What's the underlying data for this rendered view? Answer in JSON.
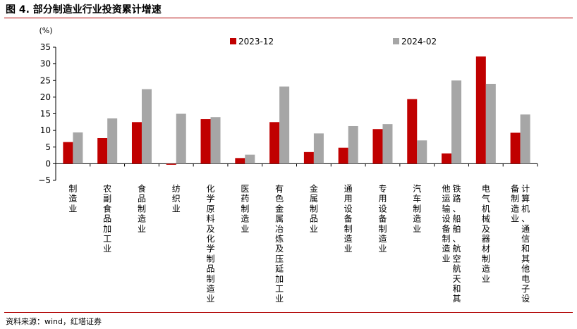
{
  "title": "图 4. 部分制造业行业投资累计增速",
  "source": "资料来源：wind，红塔证券",
  "colors": {
    "series1": "#c00000",
    "series2": "#a6a6a6",
    "rule": "#b00000"
  },
  "chart_data": {
    "type": "bar",
    "title": "",
    "xlabel": "",
    "ylabel": "",
    "unit_label": "(%)",
    "ylim": [
      -5,
      35
    ],
    "yticks": [
      -5,
      0,
      5,
      10,
      15,
      20,
      25,
      30,
      35
    ],
    "grid": false,
    "legend_position": "top-center",
    "categories": [
      "制造业",
      "农副食品加工业",
      "食品制造业",
      "纺织业",
      "化学原料及化学制品制造业",
      "医药制造业",
      "有色金属冶炼及压延加工业",
      "金属制品业",
      "通用设备制造业",
      "专用设备制造业",
      "汽车制造业",
      "铁路、船舶、航空航天和其他运输设备制造业",
      "电气机械及器材制造业",
      "计算机、通信和其他电子设备制造业"
    ],
    "category_label_columns": [
      [
        "制造业"
      ],
      [
        "农副食品加工业"
      ],
      [
        "食品制造业"
      ],
      [
        "纺织业"
      ],
      [
        "化学原料及化学制品制造业"
      ],
      [
        "医药制造业"
      ],
      [
        "有色金属冶炼及压延加工业"
      ],
      [
        "金属制品业"
      ],
      [
        "通用设备制造业"
      ],
      [
        "专用设备制造业"
      ],
      [
        "汽车制造业"
      ],
      [
        "铁路、船舶、航空航天和其",
        "他运输设备制造业"
      ],
      [
        "电气机械及器材制造业"
      ],
      [
        "计算机、通信和其他电子设",
        "备制造业"
      ]
    ],
    "series": [
      {
        "name": "2023-12",
        "values": [
          6.5,
          7.7,
          12.5,
          -0.2,
          13.4,
          1.7,
          12.5,
          3.5,
          4.8,
          10.4,
          19.4,
          3.1,
          32.2,
          9.3
        ]
      },
      {
        "name": "2024-02",
        "values": [
          9.4,
          13.6,
          22.4,
          15.0,
          14.0,
          2.7,
          23.2,
          9.1,
          11.3,
          11.9,
          7.0,
          25.0,
          24.0,
          14.8
        ]
      }
    ]
  }
}
